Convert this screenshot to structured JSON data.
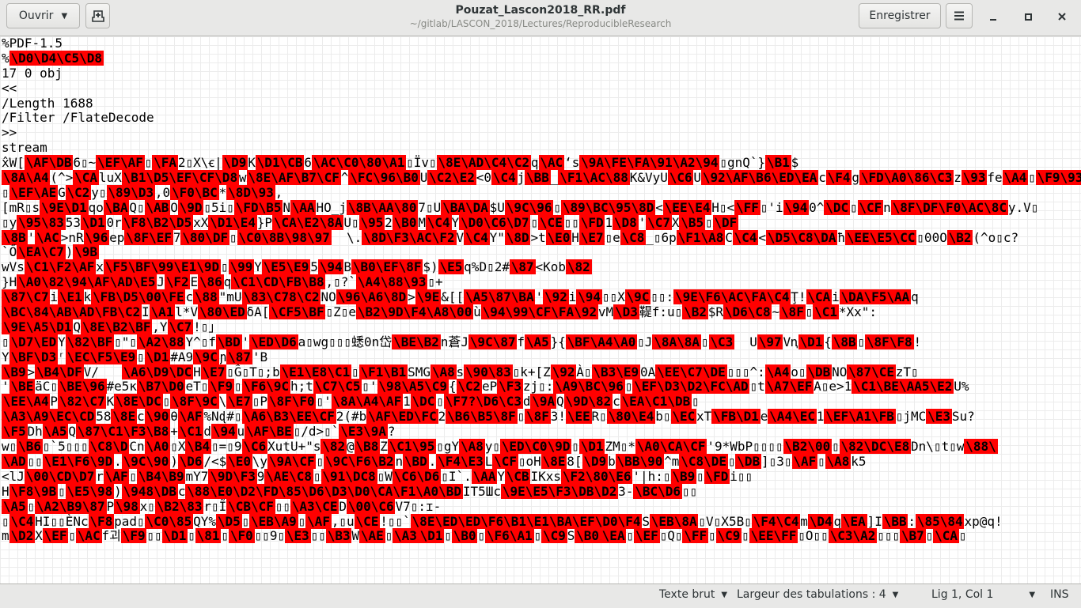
{
  "header": {
    "open_label": "Ouvrir",
    "title": "Pouzat_Lascon2018_RR.pdf",
    "path": "~/gitlab/LASCON_2018/Lectures/ReproducibleResearch",
    "save_label": "Enregistrer"
  },
  "colors": {
    "escape_highlight": "#ff0000",
    "header_bg": "#e8e8e7"
  },
  "editor": {
    "lines": [
      "%PDF-1.5",
      "%«\\D0\\D4\\C5\\D8»",
      "17 0 obj",
      "<<",
      "/Length 1688",
      "/Filter /FlateDecode",
      ">>",
      "stream",
      "x̂W[«\\AF\\DB»6▯~«\\EF\\AF»▯«\\FA»2▯X\\ꞓ|«\\D9»K«\\D1\\CB»6«\\AC\\C0\\80\\A1»▯Ïv▯«\\8E\\AD\\C4\\C2»q«\\AC»ʻs«\\9A\\FE\\FA\\91\\A2\\94»▯gnQ`}«\\B1»$",
      "«\\8A\\A4»(^>«\\CA»luX«\\B1\\D5\\EF\\CF\\D8»w«\\8E\\AF\\B7\\CF»^«\\FC\\96\\B0»U«\\C2\\E2»<0«\\C4»j«\\BB»_«\\F1\\AC\\88»K&VyU«\\C6»U«\\92\\AF\\B6\\ED\\EA»c«\\F4»g«\\FD\\A0\\86\\C3»z«\\93»fe«\\A4»▯«\\F9\\93»",
      "▯«\\EF\\AE»G«\\C2»y▯«\\89\\D3»,0«\\F0\\BC»*«\\8D\\93»,",
      "[mR▯s«\\9E\\D1»qo«\\BA»Q▯«\\AB»O«\\9D»▯5i▯«\\FD\\B5»N«\\AA»HO_j«\\8B\\AA\\80»7▯U«\\BA\\DA»$U«\\9C\\96»▯«\\89\\BC\\95\\8D»<«\\EE\\E4»H▯<«\\FF»▯'i«\\94»0^«\\DC»▯«\\CF»n«\\8F\\DF\\F0\\AC\\8C»y.V▯",
      "▯y«\\95\\83»53«\\D1»0r«\\F8\\B2\\D5»xX«\\D1\\E4»}P«\\CA\\E2\\8A»U▯«\\95»2«\\B0»M«\\C4»Y«\\D0\\C6\\D7»▯«\\CE»▯▯«\\FD»1«\\D8»'«\\C7»X«\\B5»▯«\\DF»",
      "«\\8B»'«\\AC»>nR«\\96»ep«\\8F\\EF»7«\\80\\DF»▯«\\C0\\8B\\98\\97»  \\.«\\8D\\F3\\AC\\F2»V«\\C4»Y\"«\\8D»>t«\\E0»H«\\E7»▯e«\\C8»_▯6p«\\F1\\A8»C«\\C4»<«\\D5\\C8\\DA»ħ«\\EE\\E5\\CC»▯00O«\\B2»(^o▯c?",
      "`Ő«\\EA\\C7»)«\\9B»",
      "wVs«\\C1\\F2\\AF»x«\\F5\\BF\\99\\E1\\9D»▯«\\99»Y«\\E5\\E9»5«\\94»B«\\B0\\EF\\8F»$)«\\E5»q%D▯2#«\\87»<Kob«\\82»",
      "}H«\\A0\\82\\94\\AF\\AD\\E5»J«\\F2»E«\\86»q«\\C1\\CD\\FB\\B8»,▯?`«\\A4\\88\\93»▯+",
      "«\\87\\C7»i«\\E1»k«\\FB\\D5\\00\\FE»c«\\88»\"mU«\\83\\C78\\C2»NO«\\96\\A6\\8D»>«\\9E»&[[«\\A5\\87\\BA»'«\\92»i«\\94»▯▯X«\\9C»▯▯:«\\9E\\F6\\AC\\FA\\C4»Ţ!«\\CA»i«\\DA\\F5\\AA»q",
      "«\\BC\\84\\AB\\AD\\FB\\C2»I«\\A1»l*V«\\80\\ED»δA[«\\CF5\\BF»▯Z▯e«\\B2\\9D\\F4\\A8\\00»ù«\\94\\99\\CF\\FA\\92»vM«\\D3»鞮f:u▯«\\B2»$R«\\D6\\C8»~«\\8F»▯«\\C1»*Xx\":",
      "«\\9E\\A5\\D1»Q«\\8E\\B2\\BF»,Y«\\C7»!▯」",
      "▯«\\D7\\ED»Y«\\82\\BF»▯\"▯«\\A2\\88»Y^▯f«\\BD»'«\\ED\\D6»a▯wg▯▯▯蟋0n岱«\\BE\\B2»n蒼J«\\9C\\87»f«\\A5»}{«\\BF\\A4\\A0»▯J«\\8A\\8A»▯«\\C3»  U«\\97»Vꞑ«\\D1»{«\\8B»▯«\\8F\\F8»!",
      "Y«\\BF\\D3»ʳ«\\EC\\F5\\E9»▯«\\D1»#A9«\\9C»ɲ«\\87»'B",
      "«\\B9»>«\\B4\\DF»V/   «\\A6\\D9\\DC»H«\\E7»▯Ĝ▯T▯;b«\\E1\\E8\\C1»▯«\\F1\\B1»SMG«\\A8»s«\\90\\83»▯k+[Z«\\92»À▯«\\B3\\E9»0A«\\EE\\C7\\DE»▯▯▯^:«\\A4»o▯«\\DB»NO«\\87\\CE»zT▯",
      "'«\\BE»äC▯«\\BE\\96»#e5ĸ«\\B7\\D0»eT▯«\\F9»▯«\\F6\\9C»h;t«\\C7\\C5»▯'«\\98\\A5\\C9»{«\\C2»eP«\\F3»zj▯:«\\A9\\BC\\96»▯«\\EF\\D3\\D2\\FC\\AD»▯t«\\A7\\EF»A▯e>1«\\C1\\BE\\AA5\\E2»U%",
      "«\\EE\\A4»P«\\82\\C7»K«\\8E\\DC»▯«\\8F\\9C»\\«\\E7»▯P«\\8F\\F0»▯'«\\8A\\A4\\AF»1«\\DC»▯«\\F7?\\D6\\C3»d«\\9A»Q«\\9D\\82»c«\\EA\\C1\\DB»▯",
      "«\\A3\\A9\\EC\\CD»58«\\8E»c«\\90»θ«\\AF»%Nɖ#▯«\\A6\\B3\\EE\\CF»2(#b«\\AF\\ED\\FC»2«\\B6\\B5\\8F»▯«\\8F»3!«\\EE»R▯«\\80\\E4»b▯«\\EC»xT«\\FB\\D1»e«\\A4\\EC»1«\\EF\\A1\\FB»▯jMC«\\E3»Su?",
      "«\\F5»Dh«\\A5»Q«\\87\\C1\\F3\\B8»+«\\C1»d«\\94»u«\\AF\\BE»▯/d>▯`«\\E3\\9A»?",
      "w▯«\\B6»▯`5▯▯▯«\\C8\\D»Cn«\\A0»▯X«\\B4»▯=▯9«\\C6»XutU+\"s«\\82»@«\\B8»Z«\\C1\\95»▯gY«\\A8»y▯«\\ED\\C0\\9D»▯«\\D1»ZM▯*«\\A0\\CA\\CF»'9*WbP▯▯▯▯«\\B2\\00»▯«\\82\\DC\\E8»Dn\\▯t▯w«\\88\\»",
      "«\\AD»▯▯«\\E1\\F6\\9D».«\\9C\\90»)«\\D6»/<$«\\E0»\\y«\\9A\\CF»▯«\\9C\\F6\\B2»n«\\BD».«\\F4\\E3»L«\\CF»▯oH«\\8E»8[«\\D9»b«\\BB\\90»^m«\\C8\\DE»▯«\\DB»]▯3▯«\\AF»▯«\\A8»k5",
      "<lJ«\\00\\CD\\D7»r«\\AF»▯«\\B4\\B9»mY7«\\9D\\F3»9«\\AE\\C8»▯«\\91\\DC8»▯W«\\C6\\D6»▯I`.«\\AA»Y«\\CB»IKxs«\\F2\\80\\E6»'|h:▯«\\B9»▯«\\FD»i▯▯",
      "H«\\F8\\9B»▯«\\E5\\98»)«\\948\\DB»c«\\88\\E0\\D2\\FD\\85\\D6\\D3\\D0\\CA\\F1\\A0\\BD»IT5Шc«\\9E\\E5\\F3\\DB\\D2»3-«\\BC\\D6»▯▯",
      "«\\A5»▯«\\A2\\B9\\87»P«\\98»x▯«\\B2\\83»r▯Ĩ«\\CB\\CF»▯▯«\\A3\\CE»D«\\00\\C6»V7▯:ɪ-",
      "▯«\\C4»HI▯▯ÈNc«\\F8»pad▯«\\C0\\85»QY%«\\D5»▯«\\EB\\A9»▯«\\AF»,▯u«\\CE»!▯▯`«\\8E\\ED\\ED\\F6\\B1\\E1\\BA\\EF\\D0\\F4»S«\\EB\\8A»▯V▯X5B▯«\\F4\\C4»m«\\D4»q«\\EA»]I«\\BB»:«\\85\\84»xp@q!",
      "m«\\D2»X«\\EF»▯«\\AC»f괴«\\F9»▯▯«\\D1»▯«\\81»▯«\\F0»▯▯9▯«\\E3»▯▯«\\B3»W«\\AE»▯«\\A3»«\\D1»▯«\\B0»▯«\\F6\\A1»▯«\\C9»S«\\B0»«\\EA»▯«\\EF»▯Q▯«\\FF»▯«\\C9»▯«\\EE\\FF»▯O▯▯«\\C3\\A2»▯▯▯«\\B7»▯«\\CA»▯"
    ]
  },
  "statusbar": {
    "language": "Texte brut",
    "tab_width": "Largeur des tabulations : 4",
    "position": "Lig 1, Col 1",
    "mode": "INS"
  }
}
